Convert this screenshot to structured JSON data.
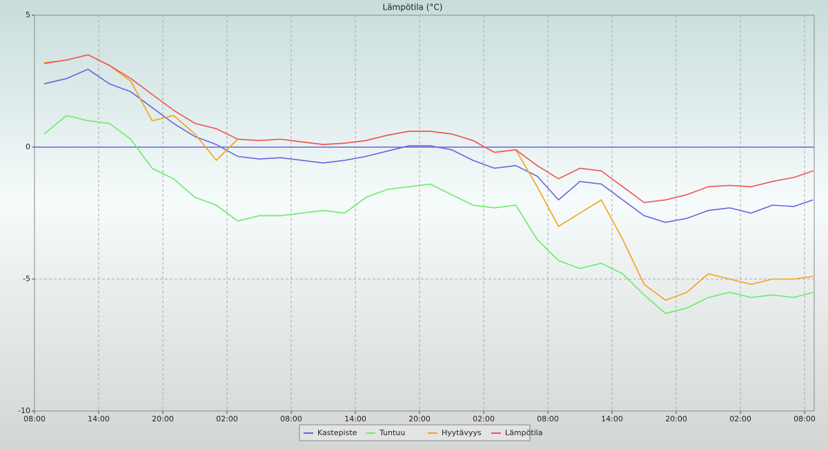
{
  "chart_data": {
    "type": "line",
    "title": "Lämpötila (°C)",
    "x": [
      0.9,
      3,
      5,
      7,
      9,
      11,
      13,
      15,
      17,
      19,
      21,
      23,
      25,
      27,
      29,
      31,
      33,
      35,
      37,
      39,
      41,
      43,
      45,
      47,
      49,
      51,
      53,
      55,
      57,
      59,
      61,
      63,
      65,
      67,
      69,
      71,
      72.8
    ],
    "xlim": [
      0,
      72.9
    ],
    "xticks": [
      {
        "value": 0,
        "label": "08:00"
      },
      {
        "value": 6,
        "label": "14:00"
      },
      {
        "value": 12,
        "label": "20:00"
      },
      {
        "value": 18,
        "label": "02:00"
      },
      {
        "value": 24,
        "label": "08:00"
      },
      {
        "value": 30,
        "label": "14:00"
      },
      {
        "value": 36,
        "label": "20:00"
      },
      {
        "value": 42,
        "label": "02:00"
      },
      {
        "value": 48,
        "label": "08:00"
      },
      {
        "value": 54,
        "label": "14:00"
      },
      {
        "value": 60,
        "label": "20:00"
      },
      {
        "value": 66,
        "label": "02:00"
      },
      {
        "value": 72,
        "label": "08:00"
      }
    ],
    "ylim": [
      -10,
      5
    ],
    "yticks": [
      -10,
      -5,
      0,
      5
    ],
    "grid": true,
    "legend": "bottom",
    "series": [
      {
        "name": "Kastepiste",
        "color": "#6464e0",
        "values": [
          2.4,
          2.6,
          2.95,
          2.4,
          2.1,
          1.5,
          0.9,
          0.4,
          0.1,
          -0.35,
          -0.45,
          -0.4,
          -0.5,
          -0.6,
          -0.5,
          -0.35,
          -0.15,
          0.05,
          0.05,
          -0.1,
          -0.5,
          -0.8,
          -0.7,
          -1.1,
          -2.0,
          -1.3,
          -1.4,
          -2.0,
          -2.6,
          -2.85,
          -2.7,
          -2.4,
          -2.3,
          -2.5,
          -2.2,
          -2.25,
          -2.0
        ]
      },
      {
        "name": "Tuntuu",
        "color": "#66ee66",
        "values": [
          0.5,
          1.2,
          1.0,
          0.9,
          0.3,
          -0.8,
          -1.2,
          -1.9,
          -2.2,
          -2.8,
          -2.6,
          -2.6,
          -2.5,
          -2.4,
          -2.5,
          -1.9,
          -1.6,
          -1.5,
          -1.4,
          -1.8,
          -2.2,
          -2.3,
          -2.2,
          -3.5,
          -4.3,
          -4.6,
          -4.4,
          -4.8,
          -5.6,
          -6.3,
          -6.1,
          -5.7,
          -5.5,
          -5.7,
          -5.6,
          -5.7,
          -5.5
        ]
      },
      {
        "name": "Hyytävyys",
        "color": "#f5a010",
        "values": [
          3.2,
          3.3,
          3.5,
          3.1,
          2.5,
          1.0,
          1.2,
          0.5,
          -0.5,
          0.3,
          0.25,
          0.3,
          0.2,
          0.1,
          0.15,
          0.25,
          0.45,
          0.6,
          0.6,
          0.5,
          0.25,
          -0.2,
          -0.1,
          -1.5,
          -3.0,
          -2.5,
          -2.0,
          -3.5,
          -5.2,
          -5.8,
          -5.5,
          -4.8,
          -5.0,
          -5.2,
          -5.0,
          -5.0,
          -4.9
        ]
      },
      {
        "name": "Lämpötila",
        "color": "#ee5555",
        "values": [
          3.17,
          3.3,
          3.5,
          3.1,
          2.6,
          2.0,
          1.4,
          0.9,
          0.7,
          0.3,
          0.25,
          0.3,
          0.2,
          0.1,
          0.15,
          0.25,
          0.45,
          0.6,
          0.6,
          0.5,
          0.25,
          -0.2,
          -0.1,
          -0.7,
          -1.2,
          -0.8,
          -0.9,
          -1.5,
          -2.1,
          -2.0,
          -1.8,
          -1.5,
          -1.45,
          -1.5,
          -1.3,
          -1.15,
          -0.9
        ]
      }
    ]
  }
}
